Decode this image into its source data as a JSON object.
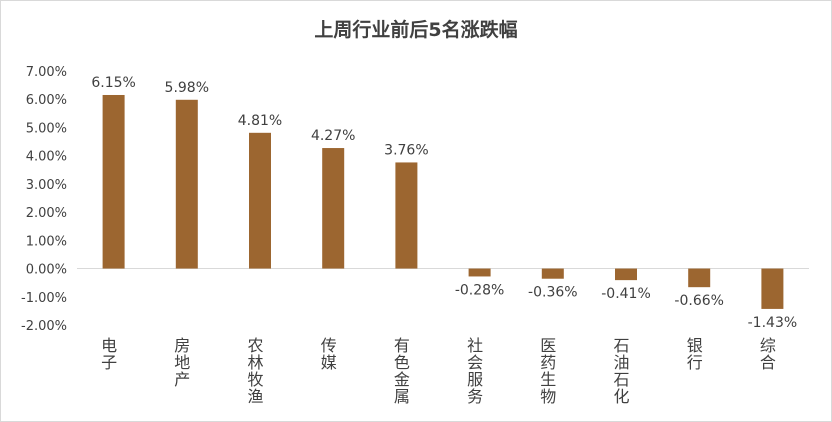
{
  "chart_data": {
    "type": "bar",
    "title": "上周行业前后5名涨跌幅",
    "xlabel": "",
    "ylabel": "",
    "categories": [
      "电子",
      "房地产",
      "农林牧渔",
      "传媒",
      "有色金属",
      "社会服务",
      "医药生物",
      "石油石化",
      "银行",
      "综合"
    ],
    "values": [
      6.15,
      5.98,
      4.81,
      4.27,
      3.76,
      -0.28,
      -0.36,
      -0.41,
      -0.66,
      -1.43
    ],
    "data_labels": [
      "6.15%",
      "5.98%",
      "4.81%",
      "4.27%",
      "3.76%",
      "-0.28%",
      "-0.36%",
      "-0.41%",
      "-0.66%",
      "-1.43%"
    ],
    "yticks": [
      -2,
      -1,
      0,
      1,
      2,
      3,
      4,
      5,
      6,
      7
    ],
    "ytick_labels": [
      "-2.00%",
      "-1.00%",
      "0.00%",
      "1.00%",
      "2.00%",
      "3.00%",
      "4.00%",
      "5.00%",
      "6.00%",
      "7.00%"
    ],
    "ylim": [
      -2,
      7
    ],
    "grid": false,
    "legend": "none",
    "bar_color": "#9c6630",
    "axis_color": "#d9d9d9",
    "text_color": "#404040"
  }
}
